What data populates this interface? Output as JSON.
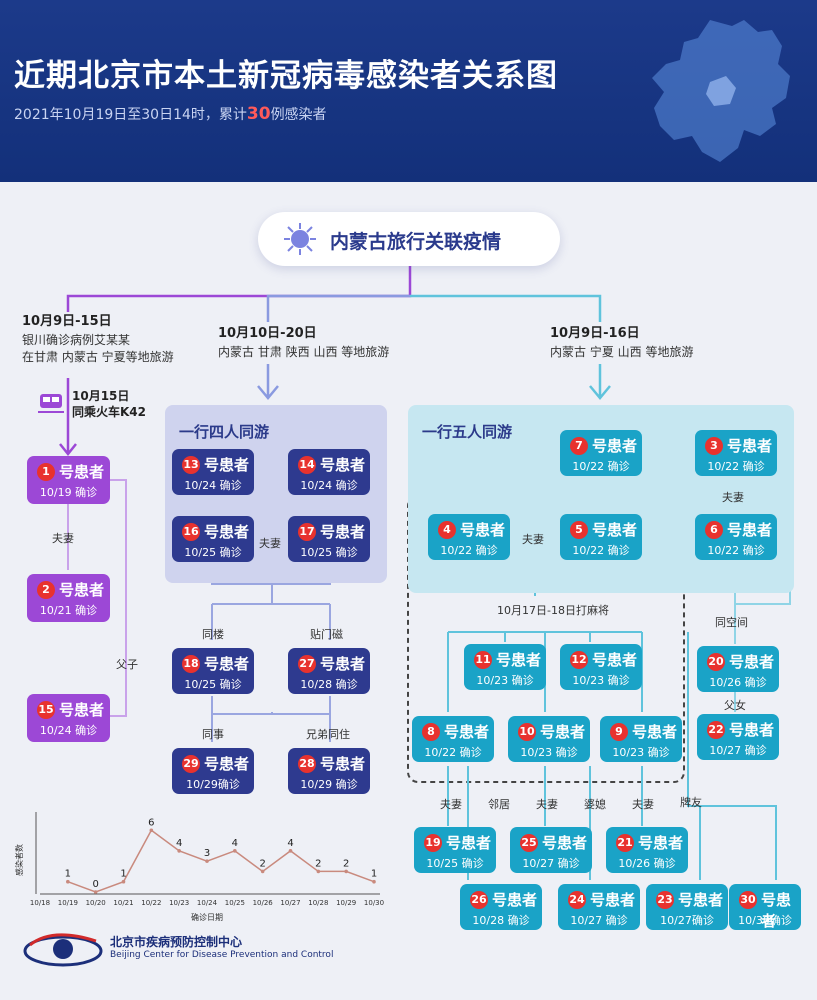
{
  "header": {
    "title": "近期北京市本土新冠病毒感染者关系图",
    "subtitle_prefix": "2021年10月19日至30日14时，累计",
    "subtitle_count": "30",
    "subtitle_suffix": "例感染者"
  },
  "root": {
    "label": "内蒙古旅行关联疫情"
  },
  "branches": {
    "left": {
      "date": "10月9日-15日",
      "line1": "银川确诊病例艾某某",
      "line2": "在甘肃 内蒙古 宁夏等地旅游",
      "train_date": "10月15日",
      "train_label": "同乘火车K42"
    },
    "middle": {
      "date": "10月10日-20日",
      "line1": "内蒙古 甘肃 陕西 山西 等地旅游",
      "group_title": "一行四人同游"
    },
    "right": {
      "date": "10月9日-16日",
      "line1": "内蒙古 宁夏 山西 等地旅游",
      "group_title": "一行五人同游",
      "mahjong": "10月17日-18日打麻将"
    }
  },
  "patient_suffix": "号患者",
  "patients": {
    "p1": {
      "num": "1",
      "date": "10/19 确诊"
    },
    "p2": {
      "num": "2",
      "date": "10/21 确诊"
    },
    "p15": {
      "num": "15",
      "date": "10/24 确诊"
    },
    "p13": {
      "num": "13",
      "date": "10/24 确诊"
    },
    "p14": {
      "num": "14",
      "date": "10/24 确诊"
    },
    "p16": {
      "num": "16",
      "date": "10/25 确诊"
    },
    "p17": {
      "num": "17",
      "date": "10/25 确诊"
    },
    "p18": {
      "num": "18",
      "date": "10/25 确诊"
    },
    "p27": {
      "num": "27",
      "date": "10/28 确诊"
    },
    "p29": {
      "num": "29",
      "date": "10/29确诊"
    },
    "p28": {
      "num": "28",
      "date": "10/29 确诊"
    },
    "p7": {
      "num": "7",
      "date": "10/22 确诊"
    },
    "p3": {
      "num": "3",
      "date": "10/22 确诊"
    },
    "p4": {
      "num": "4",
      "date": "10/22 确诊"
    },
    "p5": {
      "num": "5",
      "date": "10/22 确诊"
    },
    "p6": {
      "num": "6",
      "date": "10/22 确诊"
    },
    "p11": {
      "num": "11",
      "date": "10/23 确诊"
    },
    "p12": {
      "num": "12",
      "date": "10/23 确诊"
    },
    "p20": {
      "num": "20",
      "date": "10/26 确诊"
    },
    "p22": {
      "num": "22",
      "date": "10/27 确诊"
    },
    "p8": {
      "num": "8",
      "date": "10/22 确诊"
    },
    "p10": {
      "num": "10",
      "date": "10/23 确诊"
    },
    "p9": {
      "num": "9",
      "date": "10/23 确诊"
    },
    "p19": {
      "num": "19",
      "date": "10/25 确诊"
    },
    "p25": {
      "num": "25",
      "date": "10/27 确诊"
    },
    "p21": {
      "num": "21",
      "date": "10/26 确诊"
    },
    "p26": {
      "num": "26",
      "date": "10/28 确诊"
    },
    "p24": {
      "num": "24",
      "date": "10/27 确诊"
    },
    "p23": {
      "num": "23",
      "date": "10/27确诊"
    },
    "p30": {
      "num": "30",
      "date": "10/30确诊"
    }
  },
  "relations": {
    "r1_2": "夫妻",
    "r1_15": "父子",
    "r16_17": "夫妻",
    "r18": "同楼",
    "r27": "贴门磁",
    "r29": "同事",
    "r28": "兄弟同住",
    "r4_5": "夫妻",
    "r3_6": "夫妻",
    "r20": "同空间",
    "r20_22": "父女",
    "r19": "夫妻",
    "r26": "邻居",
    "r25": "夫妻",
    "r24": "婆媳",
    "r21": "夫妻",
    "r23_30": "牌友"
  },
  "chart_data": {
    "type": "line",
    "ylabel": "感染者数",
    "xlabel": "确诊日期",
    "categories": [
      "10/18",
      "10/19",
      "10/20",
      "10/21",
      "10/22",
      "10/23",
      "10/24",
      "10/25",
      "10/26",
      "10/27",
      "10/28",
      "10/29",
      "10/30"
    ],
    "values": [
      null,
      1,
      0,
      1,
      6,
      4,
      3,
      4,
      2,
      4,
      2,
      2,
      1
    ],
    "ylim": [
      0,
      7
    ]
  },
  "footer": {
    "org_cn": "北京市疾病预防控制中心",
    "org_en": "Beijing Center for Disease Prevention and Control"
  },
  "colors": {
    "navy": "#2e3a8f",
    "teal": "#1aa3c7",
    "purple": "#9c48d6",
    "badge": "#e8322e"
  }
}
